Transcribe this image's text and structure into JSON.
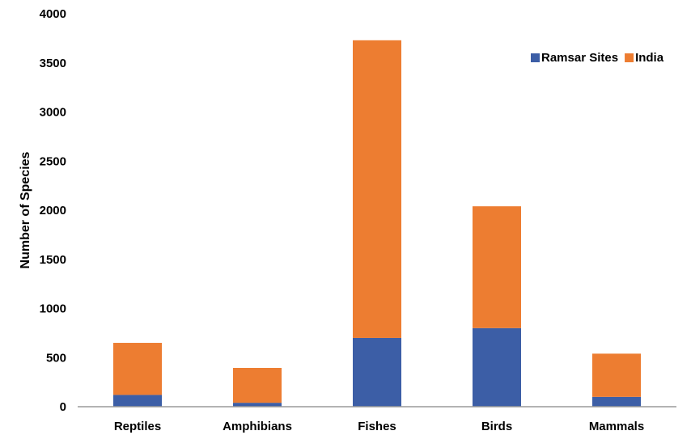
{
  "chart_data": {
    "type": "bar",
    "stacked": true,
    "categories": [
      "Reptiles",
      "Amphibians",
      "Fishes",
      "Birds",
      "Mammals"
    ],
    "series": [
      {
        "name": "Ramsar Sites",
        "color": "#3c5ea6",
        "values": [
          120,
          40,
          700,
          800,
          100
        ]
      },
      {
        "name": "India",
        "color": "#ed7d31",
        "values": [
          530,
          355,
          3030,
          1240,
          440
        ]
      }
    ],
    "ylabel": "Number of Species",
    "xlabel": "",
    "ylim": [
      0,
      4000
    ],
    "yticks": [
      "0",
      "500",
      "1000",
      "1500",
      "2000",
      "2500",
      "3000",
      "3500",
      "4000"
    ],
    "grid": false,
    "legend_position": "top-right"
  }
}
